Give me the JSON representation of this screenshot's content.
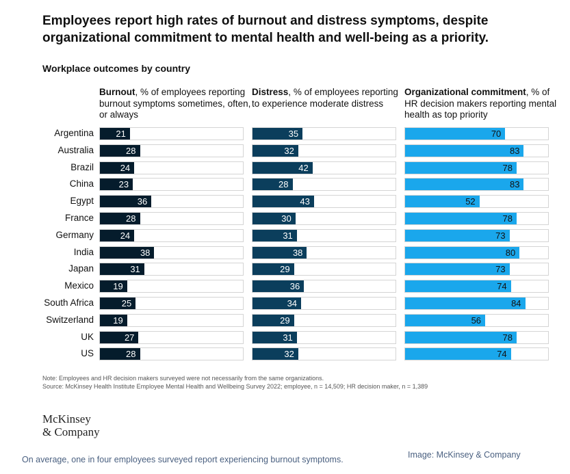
{
  "title": "Employees report high rates of burnout and distress symptoms, despite organizational commitment to mental health and well-being as a priority.",
  "subtitle": "Workplace outcomes by country",
  "note": "Note: Employees and HR decision makers surveyed were not necessarily from the same organizations.",
  "source": "Source: McKinsey Health Institute Employee Mental Health and Wellbeing Survey 2022; employee, n = 14,509; HR decision maker, n = 1,389",
  "logo": {
    "line1": "McKinsey",
    "line2": "& Company"
  },
  "caption": "On average, one in four employees surveyed report experiencing burnout symptoms.",
  "credit": "Image: McKinsey & Company",
  "colors": {
    "burnout": "#051c2c",
    "distress": "#0b3e5c",
    "commitment": "#1aa7ec",
    "track_border": "#d4d4d4"
  },
  "chart_data": {
    "type": "bar",
    "orientation": "horizontal",
    "categories": [
      "Argentina",
      "Australia",
      "Brazil",
      "China",
      "Egypt",
      "France",
      "Germany",
      "India",
      "Japan",
      "Mexico",
      "South Africa",
      "Switzerland",
      "UK",
      "US"
    ],
    "xlim": [
      0,
      100
    ],
    "grid": false,
    "series": [
      {
        "name": "Burnout",
        "description": "% of employees reporting burnout symptoms sometimes, often, or always",
        "values": [
          21,
          28,
          24,
          23,
          36,
          28,
          24,
          38,
          31,
          19,
          25,
          19,
          27,
          28
        ]
      },
      {
        "name": "Distress",
        "description": "% of employees reporting to experience moderate distress",
        "values": [
          35,
          32,
          42,
          28,
          43,
          30,
          31,
          38,
          29,
          36,
          34,
          29,
          31,
          32
        ]
      },
      {
        "name": "Organizational commitment",
        "description": "% of HR decision makers reporting mental health as top priority",
        "values": [
          70,
          83,
          78,
          83,
          52,
          78,
          73,
          80,
          73,
          74,
          84,
          56,
          78,
          74
        ]
      }
    ]
  }
}
